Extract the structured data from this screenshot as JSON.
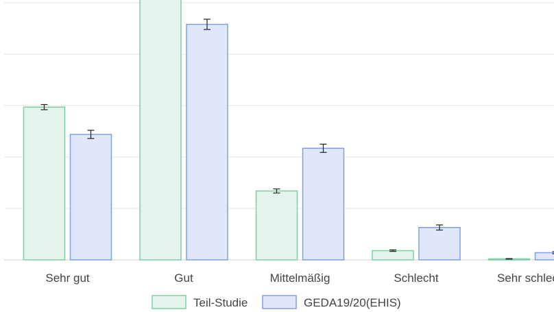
{
  "chart_data": {
    "type": "bar",
    "title": "",
    "xlabel": "",
    "ylabel": "",
    "categories": [
      "Sehr gut",
      "Gut",
      "Mittelmäßig",
      "Schlecht",
      "Sehr schlecht"
    ],
    "ylim": [
      0,
      50
    ],
    "y_gridlines": [
      0,
      10,
      20,
      30,
      40,
      50
    ],
    "grid": true,
    "legend_position": "bottom",
    "series": [
      {
        "name": "Teil-Studie",
        "color": "#7fcfa6",
        "fill": "#e4f4ec",
        "values": [
          29.7,
          52.5,
          13.4,
          1.8,
          0.2
        ],
        "error": [
          0.5,
          0.6,
          0.4,
          0.15,
          0.05
        ]
      },
      {
        "name": "GEDA19/20(EHIS)",
        "color": "#7e9fe6",
        "fill": "#e0e7fa",
        "values": [
          24.4,
          45.8,
          21.7,
          6.3,
          1.4
        ],
        "error": [
          0.8,
          1.0,
          0.8,
          0.5,
          0.2
        ]
      }
    ]
  }
}
